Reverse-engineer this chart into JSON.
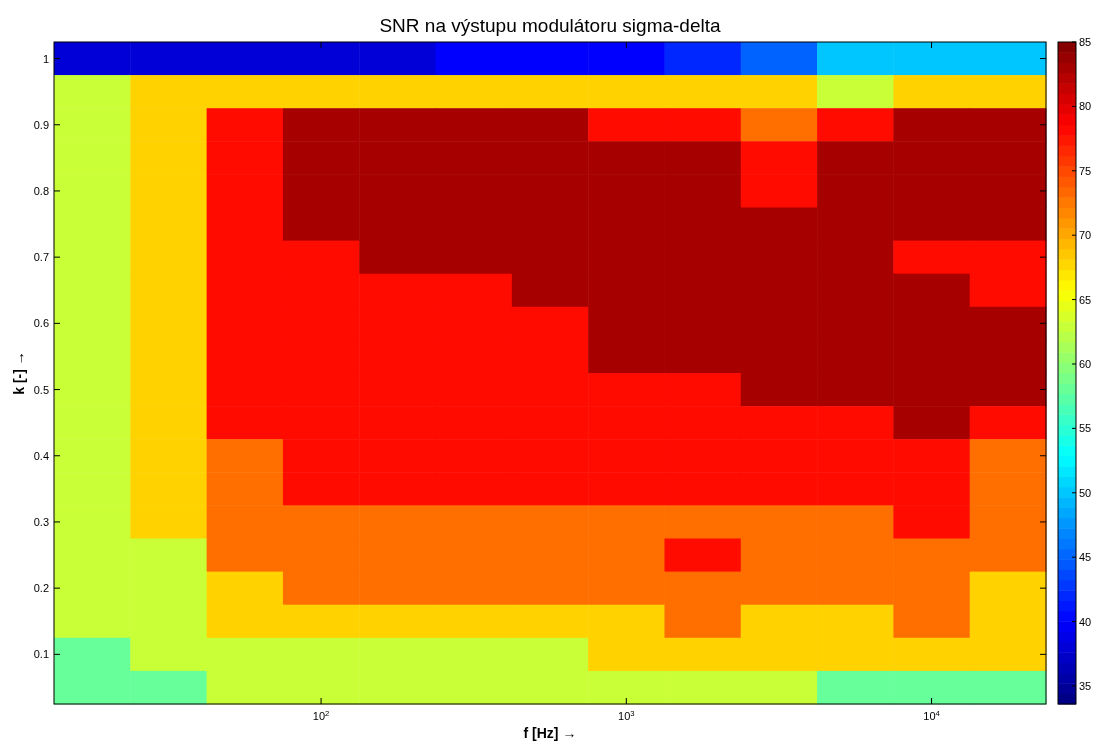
{
  "chart_data": {
    "type": "heatmap",
    "title": "SNR na výstupu modulátoru sigma-delta",
    "xlabel": "f [Hz] →",
    "ylabel": "k [-] →",
    "categories": [
      null,
      null,
      null,
      "10$^{2}$",
      null,
      null,
      null,
      "10$^{3}$",
      null,
      null,
      null,
      "10$^{4}$",
      null
    ],
    "y_categories": [
      "1",
      null,
      "0.9",
      null,
      "0.8",
      null,
      "0.7",
      null,
      "0.6",
      null,
      "0.5",
      null,
      "0.4",
      null,
      "0.3",
      null,
      "0.2",
      null,
      "0.1",
      null
    ],
    "cells": [
      [
        38,
        38,
        38,
        38,
        38,
        40,
        40,
        40,
        42,
        45,
        50,
        50,
        50
      ],
      [
        63,
        68,
        68,
        68,
        68,
        68,
        68,
        68,
        68,
        68,
        63,
        68,
        68
      ],
      [
        63,
        68,
        78,
        83,
        83,
        83,
        83,
        78,
        78,
        73,
        78,
        83,
        83
      ],
      [
        63,
        68,
        78,
        83,
        83,
        83,
        83,
        83,
        83,
        78,
        83,
        83,
        83
      ],
      [
        63,
        68,
        78,
        83,
        83,
        83,
        83,
        83,
        83,
        78,
        83,
        83,
        83
      ],
      [
        63,
        68,
        78,
        83,
        83,
        83,
        83,
        83,
        83,
        83,
        83,
        83,
        83
      ],
      [
        63,
        68,
        78,
        78,
        83,
        83,
        83,
        83,
        83,
        83,
        83,
        78,
        78
      ],
      [
        63,
        68,
        78,
        78,
        78,
        78,
        83,
        83,
        83,
        83,
        83,
        83,
        78
      ],
      [
        63,
        68,
        78,
        78,
        78,
        78,
        78,
        83,
        83,
        83,
        83,
        83,
        83
      ],
      [
        63,
        68,
        78,
        78,
        78,
        78,
        78,
        83,
        83,
        83,
        83,
        83,
        83
      ],
      [
        63,
        68,
        78,
        78,
        78,
        78,
        78,
        78,
        78,
        83,
        83,
        83,
        83
      ],
      [
        63,
        68,
        78,
        78,
        78,
        78,
        78,
        78,
        78,
        78,
        78,
        83,
        78
      ],
      [
        63,
        68,
        73,
        78,
        78,
        78,
        78,
        78,
        78,
        78,
        78,
        78,
        73
      ],
      [
        63,
        68,
        73,
        78,
        78,
        78,
        78,
        78,
        78,
        78,
        78,
        78,
        73
      ],
      [
        63,
        68,
        73,
        73,
        73,
        73,
        73,
        73,
        73,
        73,
        73,
        78,
        73
      ],
      [
        63,
        63,
        73,
        73,
        73,
        73,
        73,
        73,
        78,
        73,
        73,
        73,
        73
      ],
      [
        63,
        63,
        68,
        73,
        73,
        73,
        73,
        73,
        73,
        73,
        73,
        73,
        68
      ],
      [
        63,
        63,
        68,
        68,
        68,
        68,
        68,
        68,
        73,
        68,
        68,
        73,
        68
      ],
      [
        58,
        63,
        63,
        63,
        63,
        63,
        63,
        68,
        68,
        68,
        68,
        68,
        68
      ],
      [
        58,
        58,
        63,
        63,
        63,
        63,
        63,
        63,
        63,
        63,
        58,
        58,
        58
      ]
    ],
    "clim": [
      33.6,
      85
    ],
    "cticks": [
      35,
      40,
      45,
      50,
      55,
      60,
      65,
      70,
      75,
      80,
      85
    ]
  }
}
